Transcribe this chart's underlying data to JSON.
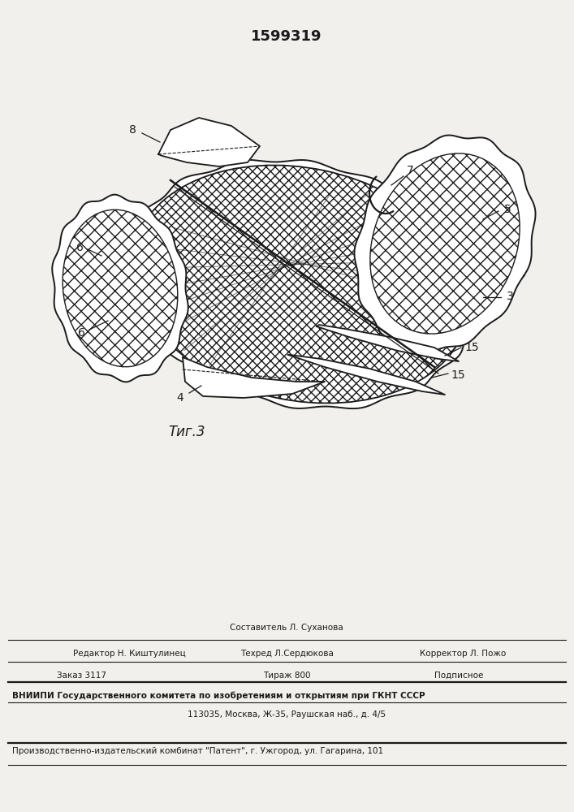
{
  "title_number": "1599319",
  "figure_label": "Τиг.3",
  "background_color": "#f2f0ec",
  "line_color": "#1a1a1a",
  "footer": {
    "composer": "Составитель Л. Суханова",
    "editor": "Редактор Н. Киштулинец",
    "techred": "Техред Л.Сердюкова",
    "corrector": "Корректор Л. Пожо",
    "order": "Заказ 3117",
    "circulation": "Тираж 800",
    "subscription": "Подписное",
    "vnipi": "ВНИИПИ Государственного комитета по изобретениям и открытиям при ГКНТ СССР",
    "address": "113035, Москва, Ж-35, Раушская наб., д. 4/5",
    "plant": "Производственно-издательский комбинат \"Патент\", г. Ужгород, ул. Гагарина, 101"
  }
}
